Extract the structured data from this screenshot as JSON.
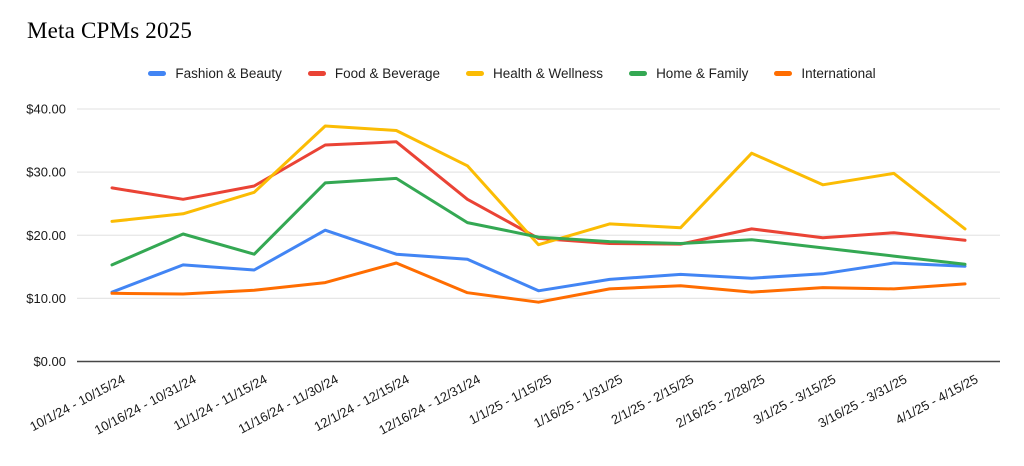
{
  "chart_data": {
    "type": "line",
    "title": "Meta CPMs 2025",
    "xlabel": "",
    "ylabel": "",
    "ylim": [
      0,
      40
    ],
    "grid": true,
    "legend_position": "top",
    "y_ticks": [
      {
        "value": 40,
        "label": "$40.00"
      },
      {
        "value": 30,
        "label": "$30.00"
      },
      {
        "value": 20,
        "label": "$20.00"
      },
      {
        "value": 10,
        "label": "$10.00"
      },
      {
        "value": 0,
        "label": "$0.00"
      }
    ],
    "categories": [
      "10/1/24 - 10/15/24",
      "10/16/24 - 10/31/24",
      "11/1/24 - 11/15/24",
      "11/16/24 - 11/30/24",
      "12/1/24 - 12/15/24",
      "12/16/24 - 12/31/24",
      "1/1/25 - 1/15/25",
      "1/16/25 - 1/31/25",
      "2/1/25 - 2/15/25",
      "2/16/25 - 2/28/25",
      "3/1/25 - 3/15/25",
      "3/16/25 - 3/31/25",
      "4/1/25 - 4/15/25"
    ],
    "series": [
      {
        "name": "Fashion & Beauty",
        "color": "#4285F4",
        "values": [
          11.0,
          15.3,
          14.5,
          20.8,
          17.0,
          16.2,
          11.2,
          13.0,
          13.8,
          13.2,
          13.9,
          15.6,
          15.1
        ]
      },
      {
        "name": "Food & Beverage",
        "color": "#EA4335",
        "values": [
          27.5,
          25.7,
          27.8,
          34.3,
          34.8,
          25.7,
          19.5,
          18.7,
          18.6,
          21.0,
          19.6,
          20.4,
          19.2
        ]
      },
      {
        "name": "Health & Wellness",
        "color": "#FBBC04",
        "values": [
          22.2,
          23.4,
          26.8,
          37.3,
          36.6,
          31.0,
          18.5,
          21.8,
          21.2,
          33.0,
          28.0,
          29.8,
          21.0
        ]
      },
      {
        "name": "Home & Family",
        "color": "#34A853",
        "values": [
          15.3,
          20.2,
          17.0,
          28.3,
          29.0,
          22.0,
          19.7,
          19.0,
          18.7,
          19.3,
          18.0,
          16.7,
          15.4
        ]
      },
      {
        "name": "International",
        "color": "#FF6D01",
        "values": [
          10.8,
          10.7,
          11.3,
          12.5,
          15.6,
          10.9,
          9.4,
          11.5,
          12.0,
          11.0,
          11.7,
          11.5,
          12.3
        ]
      }
    ]
  },
  "colors": {
    "grid_line": "#e6e6e6",
    "axis_line": "#474747",
    "tick_text": "#1a1a1a",
    "background": "#ffffff"
  }
}
